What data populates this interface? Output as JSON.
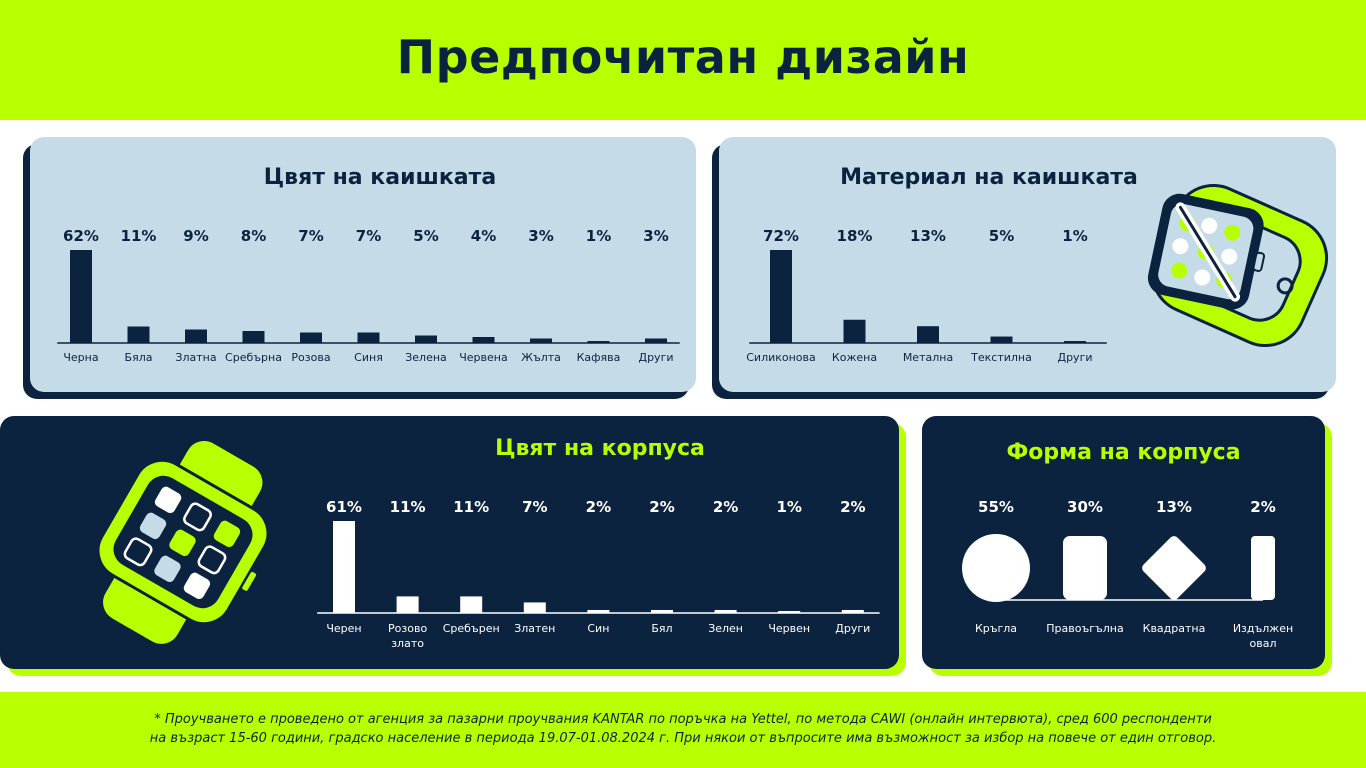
{
  "header": {
    "title": "Предпочитан дизайн"
  },
  "colors": {
    "lime": "#b8ff00",
    "navy": "#0c2340",
    "light_blue": "#c5dce8",
    "white": "#ffffff"
  },
  "panels": {
    "strap_color": {
      "title": "Цвят на каишката"
    },
    "strap_material": {
      "title": "Материал на каишката"
    },
    "case_color": {
      "title": "Цвят на корпуса"
    },
    "case_shape": {
      "title": "Форма на корпуса"
    }
  },
  "illustrations": [
    "smartwatch-side-icon",
    "smartwatch-front-icon"
  ],
  "chart_data": [
    {
      "id": "strap_color",
      "type": "bar",
      "title": "Цвят на каишката",
      "categories": [
        "Черна",
        "Бяла",
        "Златна",
        "Сребърна",
        "Розова",
        "Синя",
        "Зелена",
        "Червена",
        "Жълта",
        "Кафява",
        "Други"
      ],
      "labels": [
        "62%",
        "11%",
        "9%",
        "8%",
        "7%",
        "7%",
        "5%",
        "4%",
        "3%",
        "1%",
        "3%"
      ],
      "values": [
        62,
        11,
        9,
        8,
        7,
        7,
        5,
        4,
        3,
        1,
        3
      ],
      "bar_color": "#0c2340",
      "ylim": [
        0,
        62
      ]
    },
    {
      "id": "strap_material",
      "type": "bar",
      "title": "Материал на каишката",
      "categories": [
        "Силиконова",
        "Кожена",
        "Метална",
        "Текстилна",
        "Други"
      ],
      "labels": [
        "72%",
        "18%",
        "13%",
        "5%",
        "1%"
      ],
      "values": [
        72,
        18,
        13,
        5,
        1
      ],
      "bar_color": "#0c2340",
      "ylim": [
        0,
        72
      ]
    },
    {
      "id": "case_color",
      "type": "bar",
      "title": "Цвят на корпуса",
      "categories": [
        "Черен",
        "Розово злато",
        "Сребърен",
        "Златен",
        "Син",
        "Бял",
        "Зелен",
        "Червен",
        "Други"
      ],
      "labels": [
        "61%",
        "11%",
        "11%",
        "7%",
        "2%",
        "2%",
        "2%",
        "1%",
        "2%"
      ],
      "values": [
        61,
        11,
        11,
        7,
        2,
        2,
        2,
        1,
        2
      ],
      "bar_color": "#ffffff",
      "ylim": [
        0,
        61
      ]
    },
    {
      "id": "case_shape",
      "type": "bar",
      "title": "Форма на корпуса",
      "categories": [
        "Кръгла",
        "Правоъгълна",
        "Квадратна",
        "Издължен овал"
      ],
      "labels": [
        "55%",
        "30%",
        "13%",
        "2%"
      ],
      "values": [
        55,
        30,
        13,
        2
      ],
      "shapes": [
        "circle",
        "rounded-rectangle",
        "diamond",
        "pill"
      ]
    }
  ],
  "footer": {
    "note_line1": "* Проучването е проведено от агенция за пазарни проучвания KANTAR по поръчка на Yettel, по метода CAWI (онлайн интервюта), сред 600 респонденти",
    "note_line2": "на възраст 15-60 години, градско население в периода 19.07-01.08.2024 г. При някои от въпросите има възможност за избор на повече от един отговор."
  }
}
